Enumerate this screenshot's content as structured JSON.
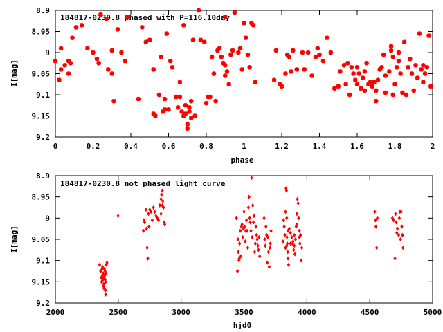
{
  "colors": {
    "points": "#ff0000",
    "axes": "#000000",
    "background": "#ffffff"
  },
  "chart_data": [
    {
      "type": "scatter",
      "title": "184817-0230.8 phased with P=116.10day",
      "xlabel": "phase",
      "ylabel": "I[mag]",
      "xlim": [
        0,
        2
      ],
      "ylim": [
        9.2,
        8.9
      ],
      "y_inverted": true,
      "grid": false,
      "marker": "star",
      "xticks": [
        "0",
        "0.2",
        "0.4",
        "0.6",
        "0.8",
        "1",
        "1.2",
        "1.4",
        "1.6",
        "1.8",
        "2"
      ],
      "yticks": [
        "8.9",
        "8.95",
        "9",
        "9.05",
        "9.1",
        "9.15",
        "9.2"
      ],
      "points": [
        [
          0.0,
          9.02
        ],
        [
          0.02,
          9.065
        ],
        [
          0.03,
          9.04
        ],
        [
          0.03,
          8.99
        ],
        [
          0.05,
          9.03
        ],
        [
          0.07,
          9.05
        ],
        [
          0.07,
          9.02
        ],
        [
          0.08,
          9.025
        ],
        [
          0.09,
          8.965
        ],
        [
          0.11,
          8.94
        ],
        [
          0.14,
          8.935
        ],
        [
          0.17,
          8.99
        ],
        [
          0.2,
          9.0
        ],
        [
          0.22,
          9.015
        ],
        [
          0.23,
          9.025
        ],
        [
          0.24,
          8.91
        ],
        [
          0.27,
          8.92
        ],
        [
          0.28,
          9.04
        ],
        [
          0.3,
          8.995
        ],
        [
          0.3,
          9.05
        ],
        [
          0.31,
          9.115
        ],
        [
          0.33,
          8.945
        ],
        [
          0.35,
          9.0
        ],
        [
          0.37,
          9.02
        ],
        [
          0.38,
          8.915
        ],
        [
          0.44,
          9.11
        ],
        [
          0.46,
          8.94
        ],
        [
          0.48,
          8.975
        ],
        [
          0.5,
          8.97
        ],
        [
          0.52,
          9.04
        ],
        [
          0.52,
          9.145
        ],
        [
          0.53,
          9.15
        ],
        [
          0.55,
          9.1
        ],
        [
          0.56,
          9.01
        ],
        [
          0.57,
          9.14
        ],
        [
          0.58,
          9.135
        ],
        [
          0.58,
          9.11
        ],
        [
          0.59,
          8.955
        ],
        [
          0.6,
          9.135
        ],
        [
          0.61,
          9.02
        ],
        [
          0.62,
          9.035
        ],
        [
          0.64,
          9.105
        ],
        [
          0.65,
          9.13
        ],
        [
          0.66,
          9.07
        ],
        [
          0.66,
          9.105
        ],
        [
          0.67,
          9.14
        ],
        [
          0.68,
          8.935
        ],
        [
          0.68,
          9.15
        ],
        [
          0.69,
          9.125
        ],
        [
          0.69,
          9.145
        ],
        [
          0.7,
          9.17
        ],
        [
          0.7,
          9.18
        ],
        [
          0.71,
          9.13
        ],
        [
          0.71,
          9.14
        ],
        [
          0.72,
          9.115
        ],
        [
          0.72,
          9.155
        ],
        [
          0.73,
          8.97
        ],
        [
          0.74,
          9.15
        ],
        [
          0.76,
          8.9
        ],
        [
          0.77,
          8.97
        ],
        [
          0.79,
          8.975
        ],
        [
          0.8,
          9.12
        ],
        [
          0.81,
          9.105
        ],
        [
          0.82,
          9.105
        ],
        [
          0.83,
          9.01
        ],
        [
          0.84,
          9.05
        ],
        [
          0.85,
          9.115
        ],
        [
          0.86,
          8.995
        ],
        [
          0.87,
          8.99
        ],
        [
          0.88,
          9.01
        ],
        [
          0.89,
          9.025
        ],
        [
          0.9,
          8.915
        ],
        [
          0.9,
          9.03
        ],
        [
          0.9,
          9.055
        ],
        [
          0.91,
          9.045
        ],
        [
          0.92,
          9.075
        ],
        [
          0.93,
          9.005
        ],
        [
          0.94,
          8.995
        ],
        [
          0.95,
          8.905
        ],
        [
          0.97,
          9.0
        ],
        [
          0.98,
          8.99
        ],
        [
          0.99,
          9.04
        ],
        [
          1.0,
          8.93
        ],
        [
          1.01,
          8.965
        ],
        [
          1.02,
          9.005
        ],
        [
          1.03,
          9.035
        ],
        [
          1.04,
          8.93
        ],
        [
          1.05,
          8.935
        ],
        [
          1.06,
          9.07
        ],
        [
          1.16,
          9.065
        ],
        [
          1.17,
          8.995
        ],
        [
          1.19,
          9.075
        ],
        [
          1.2,
          9.08
        ],
        [
          1.22,
          9.05
        ],
        [
          1.23,
          9.005
        ],
        [
          1.24,
          9.01
        ],
        [
          1.25,
          9.045
        ],
        [
          1.26,
          8.995
        ],
        [
          1.28,
          9.04
        ],
        [
          1.31,
          9.0
        ],
        [
          1.32,
          9.04
        ],
        [
          1.34,
          9.0
        ],
        [
          1.36,
          9.055
        ],
        [
          1.38,
          9.01
        ],
        [
          1.39,
          8.99
        ],
        [
          1.4,
          9.005
        ],
        [
          1.42,
          9.02
        ],
        [
          1.44,
          8.965
        ],
        [
          1.46,
          9.0
        ],
        [
          1.48,
          9.085
        ],
        [
          1.5,
          9.08
        ],
        [
          1.51,
          9.045
        ],
        [
          1.53,
          9.03
        ],
        [
          1.54,
          9.075
        ],
        [
          1.55,
          9.025
        ],
        [
          1.56,
          9.1
        ],
        [
          1.57,
          9.035
        ],
        [
          1.58,
          9.05
        ],
        [
          1.59,
          9.065
        ],
        [
          1.6,
          9.035
        ],
        [
          1.61,
          9.05
        ],
        [
          1.62,
          9.085
        ],
        [
          1.63,
          9.06
        ],
        [
          1.64,
          9.045
        ],
        [
          1.65,
          9.025
        ],
        [
          1.66,
          9.075
        ],
        [
          1.67,
          9.07
        ],
        [
          1.68,
          9.08
        ],
        [
          1.69,
          9.07
        ],
        [
          1.7,
          9.115
        ],
        [
          1.7,
          9.09
        ],
        [
          1.71,
          9.065
        ],
        [
          1.72,
          9.04
        ],
        [
          1.73,
          9.035
        ],
        [
          1.74,
          9.005
        ],
        [
          1.75,
          9.095
        ],
        [
          1.77,
          9.045
        ],
        [
          1.78,
          8.985
        ],
        [
          1.79,
          9.1
        ],
        [
          1.8,
          9.075
        ],
        [
          1.81,
          9.035
        ],
        [
          1.82,
          9.0
        ],
        [
          1.83,
          9.05
        ],
        [
          1.84,
          9.095
        ],
        [
          1.85,
          8.975
        ],
        [
          1.86,
          9.1
        ],
        [
          1.87,
          9.035
        ],
        [
          1.88,
          9.015
        ],
        [
          1.89,
          9.05
        ],
        [
          1.9,
          9.09
        ],
        [
          1.91,
          9.03
        ],
        [
          1.92,
          9.06
        ],
        [
          1.93,
          8.955
        ],
        [
          1.94,
          9.04
        ],
        [
          1.95,
          9.07
        ],
        [
          1.96,
          9.05
        ],
        [
          1.97,
          9.035
        ],
        [
          1.98,
          8.96
        ],
        [
          1.99,
          9.08
        ],
        [
          1.95,
          9.03
        ],
        [
          1.75,
          9.055
        ],
        [
          1.79,
          9.01
        ],
        [
          1.6,
          9.075
        ],
        [
          1.64,
          9.09
        ],
        [
          1.78,
          8.995
        ],
        [
          1.82,
          9.02
        ]
      ]
    },
    {
      "type": "scatter",
      "title": "184817-0230.8 not phased light curve",
      "xlabel": "hjd0",
      "ylabel": "I[mag]",
      "xlim": [
        2000,
        5000
      ],
      "ylim": [
        9.2,
        8.9
      ],
      "y_inverted": true,
      "grid": false,
      "marker": "diamond",
      "xticks": [
        "2000",
        "2500",
        "3000",
        "3500",
        "4000",
        "4500",
        "5000"
      ],
      "yticks": [
        "8.9",
        "8.95",
        "9",
        "9.05",
        "9.1",
        "9.15",
        "9.2"
      ],
      "points": [
        [
          2352,
          9.11
        ],
        [
          2360,
          9.125
        ],
        [
          2365,
          9.14
        ],
        [
          2368,
          9.15
        ],
        [
          2372,
          9.12
        ],
        [
          2375,
          9.135
        ],
        [
          2378,
          9.145
        ],
        [
          2380,
          9.13
        ],
        [
          2382,
          9.16
        ],
        [
          2385,
          9.155
        ],
        [
          2388,
          9.14
        ],
        [
          2390,
          9.12
        ],
        [
          2392,
          9.135
        ],
        [
          2395,
          9.145
        ],
        [
          2398,
          9.17
        ],
        [
          2400,
          9.18
        ],
        [
          2402,
          9.13
        ],
        [
          2405,
          9.11
        ],
        [
          2410,
          9.105
        ],
        [
          2375,
          9.115
        ],
        [
          2385,
          9.165
        ],
        [
          2395,
          9.125
        ],
        [
          2400,
          9.15
        ],
        [
          2370,
          9.14
        ],
        [
          2498,
          8.995
        ],
        [
          2700,
          9.03
        ],
        [
          2705,
          9.005
        ],
        [
          2710,
          9.01
        ],
        [
          2720,
          8.98
        ],
        [
          2725,
          9.025
        ],
        [
          2730,
          9.07
        ],
        [
          2735,
          9.095
        ],
        [
          2740,
          8.99
        ],
        [
          2745,
          9.02
        ],
        [
          2750,
          8.98
        ],
        [
          2760,
          8.985
        ],
        [
          2770,
          9.005
        ],
        [
          2780,
          8.975
        ],
        [
          2790,
          8.985
        ],
        [
          2800,
          8.995
        ],
        [
          2810,
          9.0
        ],
        [
          2820,
          9.005
        ],
        [
          2830,
          8.97
        ],
        [
          2840,
          8.955
        ],
        [
          2845,
          8.945
        ],
        [
          2850,
          8.935
        ],
        [
          2855,
          8.96
        ],
        [
          2860,
          8.975
        ],
        [
          2865,
          9.01
        ],
        [
          2870,
          9.015
        ],
        [
          2850,
          8.97
        ],
        [
          2840,
          8.99
        ],
        [
          3440,
          9.0
        ],
        [
          3448,
          9.125
        ],
        [
          3452,
          9.05
        ],
        [
          3455,
          9.08
        ],
        [
          3460,
          9.1
        ],
        [
          3462,
          9.095
        ],
        [
          3465,
          9.06
        ],
        [
          3470,
          9.03
        ],
        [
          3475,
          9.09
        ],
        [
          3480,
          9.02
        ],
        [
          3485,
          9.015
        ],
        [
          3490,
          9.045
        ],
        [
          3495,
          9.025
        ],
        [
          3500,
          8.985
        ],
        [
          3505,
          9.02
        ],
        [
          3510,
          9.055
        ],
        [
          3515,
          9.03
        ],
        [
          3520,
          9.005
        ],
        [
          3525,
          9.03
        ],
        [
          3530,
          9.07
        ],
        [
          3535,
          8.975
        ],
        [
          3540,
          8.95
        ],
        [
          3545,
          9.0
        ],
        [
          3550,
          9.01
        ],
        [
          3555,
          9.03
        ],
        [
          3560,
          8.905
        ],
        [
          3565,
          9.045
        ],
        [
          3570,
          8.97
        ],
        [
          3575,
          9.01
        ],
        [
          3580,
          8.995
        ],
        [
          3585,
          9.08
        ],
        [
          3590,
          9.06
        ],
        [
          3595,
          9.02
        ],
        [
          3600,
          9.04
        ],
        [
          3605,
          9.05
        ],
        [
          3610,
          9.065
        ],
        [
          3615,
          9.075
        ],
        [
          3620,
          9.045
        ],
        [
          3625,
          9.09
        ],
        [
          3660,
          9.0
        ],
        [
          3665,
          9.05
        ],
        [
          3670,
          9.065
        ],
        [
          3675,
          9.02
        ],
        [
          3680,
          9.04
        ],
        [
          3685,
          9.105
        ],
        [
          3690,
          9.045
        ],
        [
          3695,
          9.08
        ],
        [
          3700,
          9.115
        ],
        [
          3705,
          9.07
        ],
        [
          3710,
          9.06
        ],
        [
          3715,
          9.03
        ],
        [
          3810,
          9.055
        ],
        [
          3815,
          9.005
        ],
        [
          3820,
          9.02
        ],
        [
          3825,
          9.04
        ],
        [
          3830,
          9.07
        ],
        [
          3835,
          8.93
        ],
        [
          3838,
          8.935
        ],
        [
          3840,
          9.0
        ],
        [
          3842,
          9.045
        ],
        [
          3845,
          9.06
        ],
        [
          3848,
          9.08
        ],
        [
          3850,
          9.03
        ],
        [
          3855,
          9.11
        ],
        [
          3860,
          9.025
        ],
        [
          3870,
          9.035
        ],
        [
          3880,
          9.045
        ],
        [
          3885,
          9.06
        ],
        [
          3890,
          9.055
        ],
        [
          3895,
          9.075
        ],
        [
          3900,
          9.04
        ],
        [
          3905,
          9.085
        ],
        [
          3910,
          9.05
        ],
        [
          3915,
          9.02
        ],
        [
          3920,
          8.99
        ],
        [
          3925,
          8.955
        ],
        [
          3930,
          8.965
        ],
        [
          3935,
          9.0
        ],
        [
          3940,
          9.03
        ],
        [
          3945,
          9.06
        ],
        [
          3950,
          9.04
        ],
        [
          3955,
          9.1
        ],
        [
          3960,
          9.07
        ],
        [
          3830,
          8.985
        ],
        [
          3840,
          9.065
        ],
        [
          3850,
          9.095
        ],
        [
          3870,
          9.06
        ],
        [
          3900,
          9.065
        ],
        [
          3920,
          9.015
        ],
        [
          3940,
          9.045
        ],
        [
          4540,
          8.985
        ],
        [
          4545,
          9.005
        ],
        [
          4550,
          9.02
        ],
        [
          4555,
          9.07
        ],
        [
          4560,
          9.0
        ],
        [
          4680,
          9.0
        ],
        [
          4690,
          9.005
        ],
        [
          4700,
          9.095
        ],
        [
          4705,
          8.99
        ],
        [
          4710,
          9.01
        ],
        [
          4715,
          9.035
        ],
        [
          4720,
          9.025
        ],
        [
          4730,
          9.04
        ],
        [
          4735,
          9.0
        ],
        [
          4740,
          8.985
        ],
        [
          4745,
          9.05
        ],
        [
          4750,
          8.985
        ],
        [
          4755,
          9.02
        ],
        [
          4760,
          9.04
        ],
        [
          4765,
          9.07
        ]
      ]
    }
  ]
}
